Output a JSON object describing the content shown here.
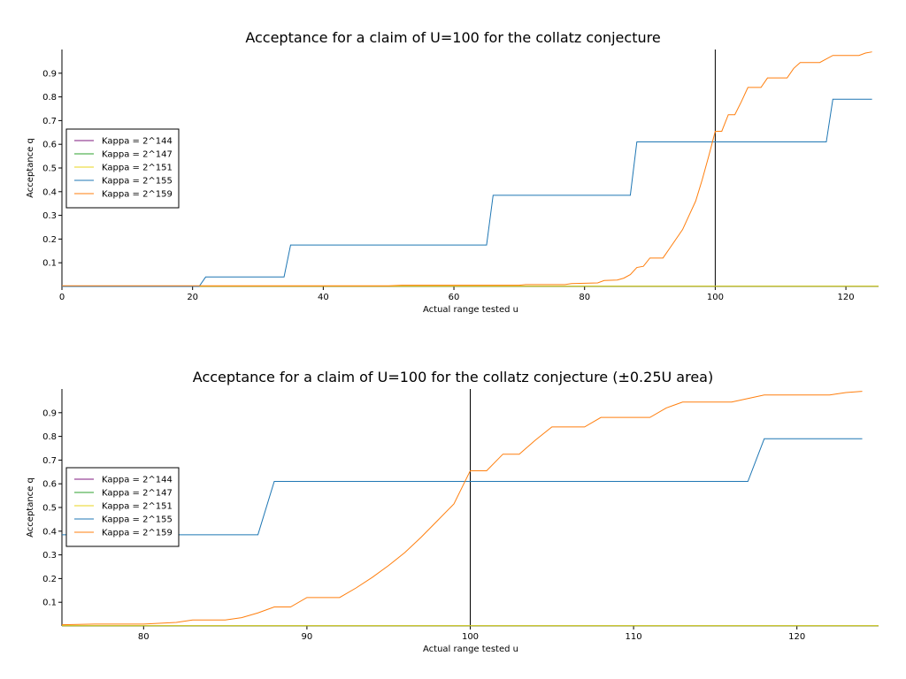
{
  "chart_data": [
    {
      "type": "line",
      "title": "Acceptance for a claim of U=100 for the collatz conjecture",
      "xlabel": "Actual range tested u",
      "ylabel": "Acceptance q",
      "xlim": [
        0,
        125
      ],
      "ylim": [
        0,
        1.0
      ],
      "xticks": [
        0,
        20,
        40,
        60,
        80,
        100,
        120
      ],
      "yticks": [
        0.1,
        0.2,
        0.3,
        0.4,
        0.5,
        0.6,
        0.7,
        0.8,
        0.9
      ],
      "vline": 100,
      "grid": false,
      "legend_position": "center-left",
      "series": [
        {
          "name": "Kappa = 2^144",
          "color": "#7f1a7f",
          "points": [
            [
              0,
              0.001
            ],
            [
              125,
              0.001
            ]
          ]
        },
        {
          "name": "Kappa = 2^147",
          "color": "#2ca02c",
          "points": [
            [
              0,
              0.001
            ],
            [
              125,
              0.001
            ]
          ]
        },
        {
          "name": "Kappa = 2^151",
          "color": "#e8d51c",
          "points": [
            [
              0,
              0.001
            ],
            [
              125,
              0.001
            ]
          ]
        },
        {
          "name": "Kappa = 2^155",
          "color": "#1f77b4",
          "points": [
            [
              0,
              0.0
            ],
            [
              21,
              0.0
            ],
            [
              22,
              0.04
            ],
            [
              34,
              0.04
            ],
            [
              35,
              0.175
            ],
            [
              65,
              0.175
            ],
            [
              66,
              0.385
            ],
            [
              87,
              0.385
            ],
            [
              88,
              0.61
            ],
            [
              117,
              0.61
            ],
            [
              118,
              0.79
            ],
            [
              124,
              0.79
            ]
          ]
        },
        {
          "name": "Kappa = 2^159",
          "color": "#ff7f0e",
          "points": [
            [
              0,
              0.003
            ],
            [
              50,
              0.003
            ],
            [
              52,
              0.005
            ],
            [
              70,
              0.005
            ],
            [
              71,
              0.008
            ],
            [
              77,
              0.008
            ],
            [
              78,
              0.012
            ],
            [
              82,
              0.015
            ],
            [
              83,
              0.025
            ],
            [
              85,
              0.027
            ],
            [
              86,
              0.035
            ],
            [
              87,
              0.05
            ],
            [
              88,
              0.08
            ],
            [
              89,
              0.085
            ],
            [
              90,
              0.12
            ],
            [
              92,
              0.12
            ],
            [
              93,
              0.16
            ],
            [
              94,
              0.2
            ],
            [
              95,
              0.24
            ],
            [
              96,
              0.3
            ],
            [
              97,
              0.36
            ],
            [
              98,
              0.45
            ],
            [
              99,
              0.55
            ],
            [
              100,
              0.655
            ],
            [
              101,
              0.655
            ],
            [
              102,
              0.725
            ],
            [
              103,
              0.725
            ],
            [
              104,
              0.78
            ],
            [
              105,
              0.84
            ],
            [
              107,
              0.84
            ],
            [
              108,
              0.88
            ],
            [
              111,
              0.88
            ],
            [
              112,
              0.92
            ],
            [
              113,
              0.945
            ],
            [
              116,
              0.945
            ],
            [
              117,
              0.96
            ],
            [
              118,
              0.975
            ],
            [
              122,
              0.975
            ],
            [
              123,
              0.985
            ],
            [
              124,
              0.99
            ]
          ]
        }
      ]
    },
    {
      "type": "line",
      "title": "Acceptance for a claim of U=100 for the collatz conjecture (±0.25U area)",
      "xlabel": "Actual range tested u",
      "ylabel": "Acceptance q",
      "xlim": [
        75,
        125
      ],
      "ylim": [
        0,
        1.0
      ],
      "xticks": [
        80,
        90,
        100,
        110,
        120
      ],
      "yticks": [
        0.1,
        0.2,
        0.3,
        0.4,
        0.5,
        0.6,
        0.7,
        0.8,
        0.9
      ],
      "vline": 100,
      "grid": false,
      "legend_position": "center-left",
      "series": [
        {
          "name": "Kappa = 2^144",
          "color": "#7f1a7f",
          "points": [
            [
              75,
              0.001
            ],
            [
              125,
              0.001
            ]
          ]
        },
        {
          "name": "Kappa = 2^147",
          "color": "#2ca02c",
          "points": [
            [
              75,
              0.001
            ],
            [
              125,
              0.001
            ]
          ]
        },
        {
          "name": "Kappa = 2^151",
          "color": "#e8d51c",
          "points": [
            [
              75,
              0.001
            ],
            [
              125,
              0.001
            ]
          ]
        },
        {
          "name": "Kappa = 2^155",
          "color": "#1f77b4",
          "points": [
            [
              75,
              0.385
            ],
            [
              87,
              0.385
            ],
            [
              88,
              0.61
            ],
            [
              117,
              0.61
            ],
            [
              118,
              0.79
            ],
            [
              124,
              0.79
            ]
          ]
        },
        {
          "name": "Kappa = 2^159",
          "color": "#ff7f0e",
          "points": [
            [
              75,
              0.005
            ],
            [
              77,
              0.008
            ],
            [
              80,
              0.008
            ],
            [
              82,
              0.015
            ],
            [
              83,
              0.025
            ],
            [
              85,
              0.025
            ],
            [
              86,
              0.035
            ],
            [
              87,
              0.055
            ],
            [
              88,
              0.08
            ],
            [
              89,
              0.08
            ],
            [
              90,
              0.12
            ],
            [
              92,
              0.12
            ],
            [
              93,
              0.16
            ],
            [
              94,
              0.205
            ],
            [
              95,
              0.255
            ],
            [
              96,
              0.31
            ],
            [
              97,
              0.375
            ],
            [
              98,
              0.445
            ],
            [
              99,
              0.515
            ],
            [
              100,
              0.655
            ],
            [
              101,
              0.655
            ],
            [
              102,
              0.725
            ],
            [
              103,
              0.725
            ],
            [
              104,
              0.785
            ],
            [
              105,
              0.84
            ],
            [
              107,
              0.84
            ],
            [
              108,
              0.88
            ],
            [
              111,
              0.88
            ],
            [
              112,
              0.92
            ],
            [
              113,
              0.945
            ],
            [
              116,
              0.945
            ],
            [
              117,
              0.96
            ],
            [
              118,
              0.975
            ],
            [
              122,
              0.975
            ],
            [
              123,
              0.985
            ],
            [
              124,
              0.99
            ]
          ]
        }
      ]
    }
  ]
}
